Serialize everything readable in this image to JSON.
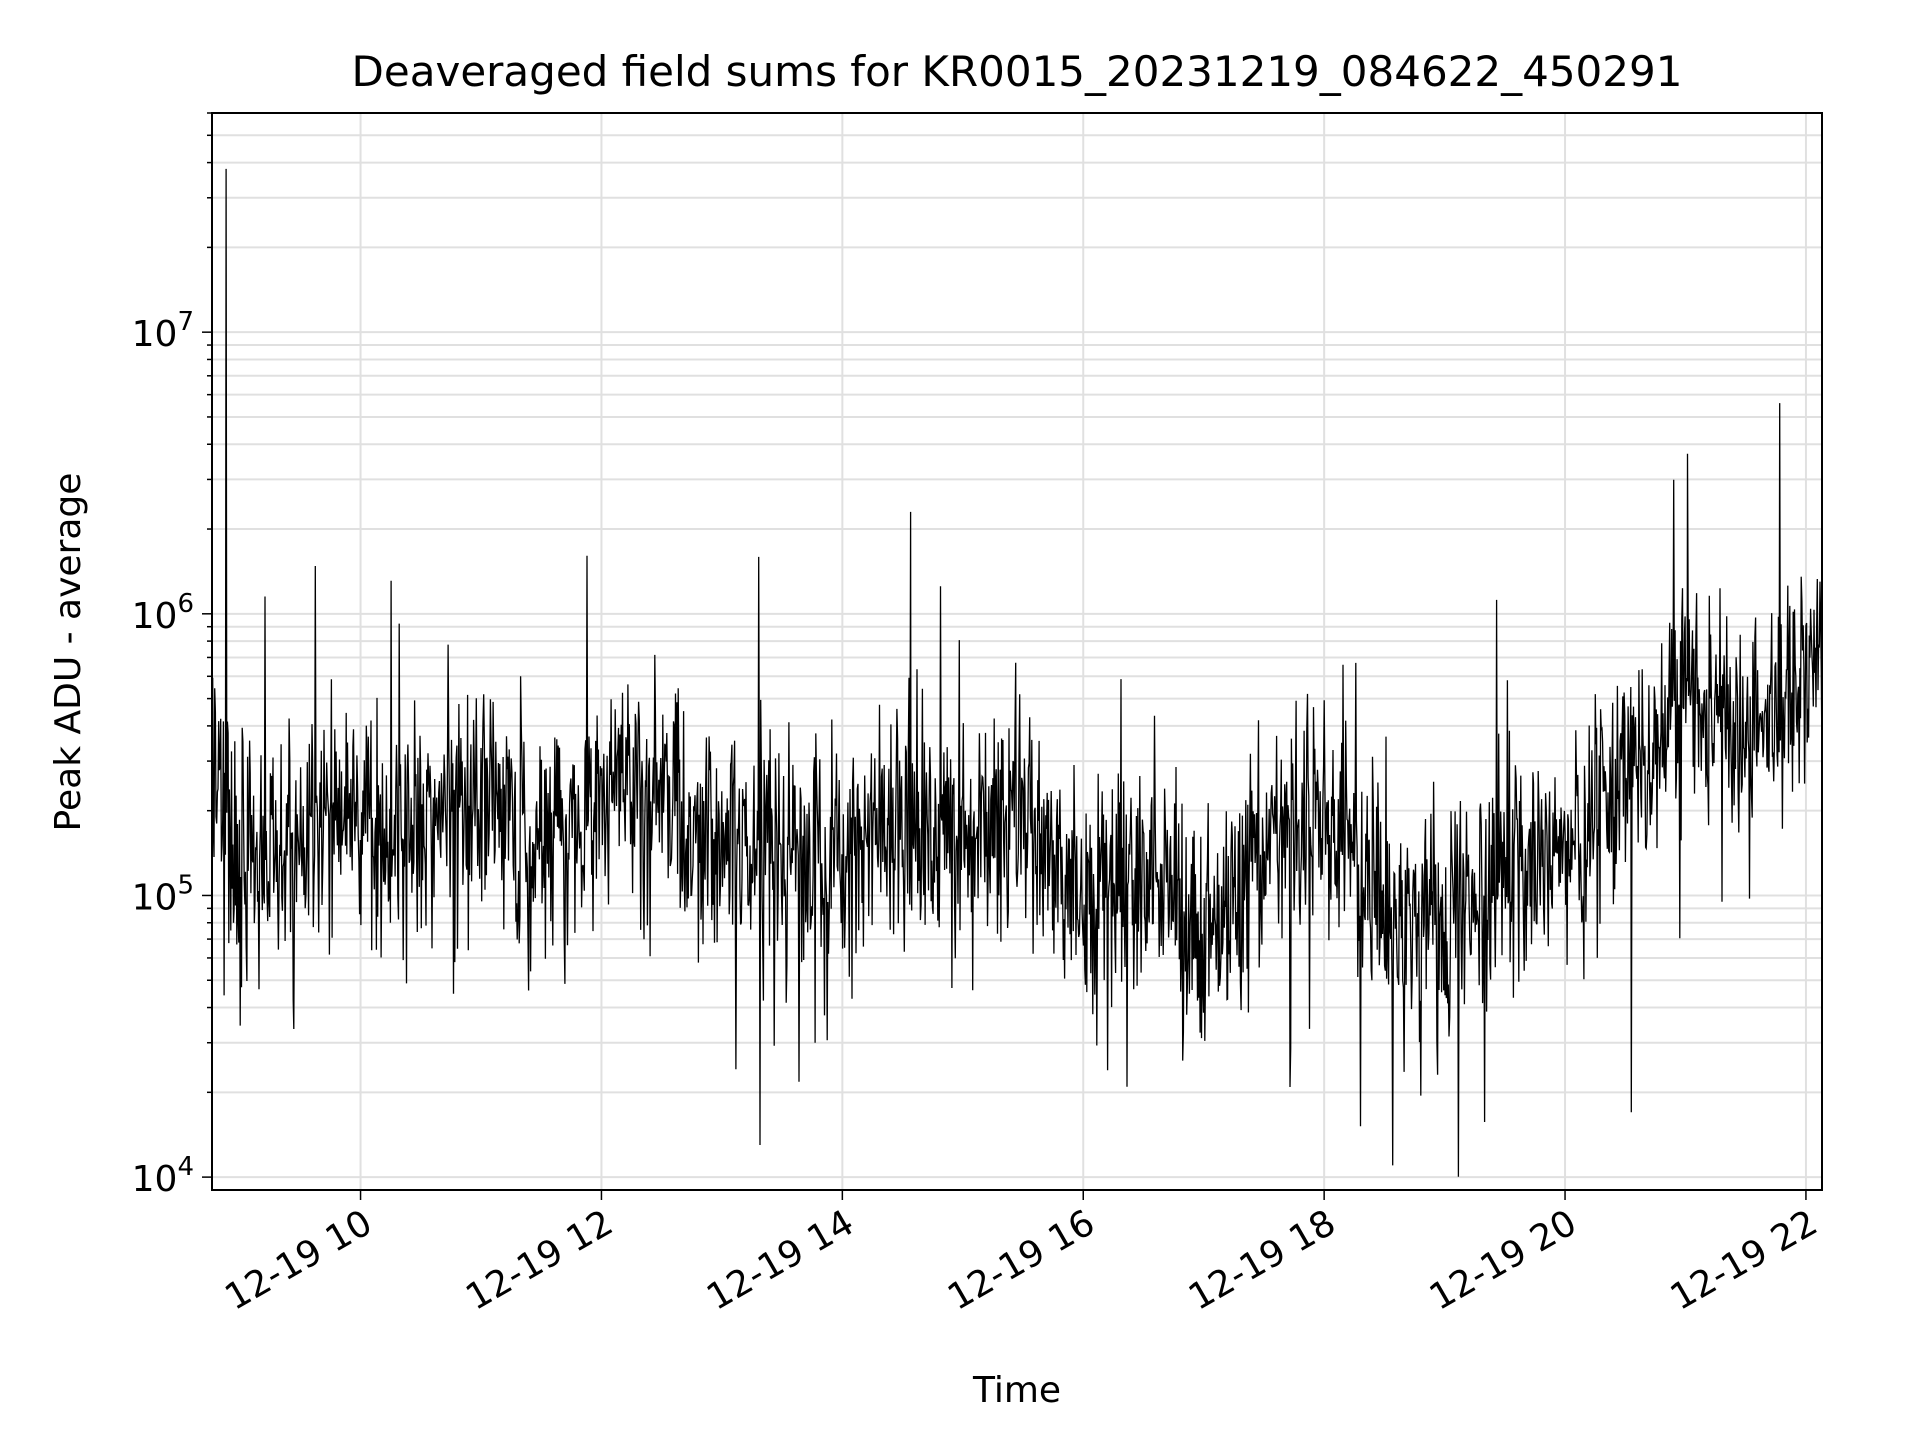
{
  "chart_data": {
    "type": "line",
    "title": "Deaveraged field sums for KR0015_20231219_084622_450291",
    "xlabel": "Time",
    "ylabel": "Peak ADU - average",
    "y_scale": "log",
    "grid": true,
    "line_color": "#000000",
    "grid_color": "#e0e0e0",
    "xlim": [
      "2023-12-19 08:46",
      "2023-12-19 22:08"
    ],
    "ylim": [
      9000,
      60000000
    ],
    "x_ticks": [
      {
        "value": "2023-12-19 10:00",
        "label": "12-19 10"
      },
      {
        "value": "2023-12-19 12:00",
        "label": "12-19 12"
      },
      {
        "value": "2023-12-19 14:00",
        "label": "12-19 14"
      },
      {
        "value": "2023-12-19 16:00",
        "label": "12-19 16"
      },
      {
        "value": "2023-12-19 18:00",
        "label": "12-19 18"
      },
      {
        "value": "2023-12-19 20:00",
        "label": "12-19 20"
      },
      {
        "value": "2023-12-19 22:00",
        "label": "12-19 22"
      }
    ],
    "y_ticks": [
      {
        "value": 10000,
        "label": "10",
        "exp": "4"
      },
      {
        "value": 100000,
        "label": "10",
        "exp": "5"
      },
      {
        "value": 1000000,
        "label": "10",
        "exp": "6"
      },
      {
        "value": 10000000,
        "label": "10",
        "exp": "7"
      }
    ],
    "series": [
      {
        "x_range": [
          "2023-12-19 08:46",
          "2023-12-19 22:08"
        ],
        "envelope": [
          {
            "x": "2023-12-19 08:46",
            "median": 320000
          },
          {
            "x": "2023-12-19 09:00",
            "median": 150000
          },
          {
            "x": "2023-12-19 09:30",
            "median": 150000
          },
          {
            "x": "2023-12-19 10:00",
            "median": 200000
          },
          {
            "x": "2023-12-19 10:30",
            "median": 170000
          },
          {
            "x": "2023-12-19 11:00",
            "median": 210000
          },
          {
            "x": "2023-12-19 11:30",
            "median": 130000
          },
          {
            "x": "2023-12-19 12:00",
            "median": 230000
          },
          {
            "x": "2023-12-19 12:30",
            "median": 220000
          },
          {
            "x": "2023-12-19 13:00",
            "median": 140000
          },
          {
            "x": "2023-12-19 13:30",
            "median": 150000
          },
          {
            "x": "2023-12-19 14:00",
            "median": 130000
          },
          {
            "x": "2023-12-19 14:30",
            "median": 190000
          },
          {
            "x": "2023-12-19 15:00",
            "median": 160000
          },
          {
            "x": "2023-12-19 15:30",
            "median": 210000
          },
          {
            "x": "2023-12-19 16:00",
            "median": 90000
          },
          {
            "x": "2023-12-19 16:30",
            "median": 120000
          },
          {
            "x": "2023-12-19 17:00",
            "median": 65000
          },
          {
            "x": "2023-12-19 17:30",
            "median": 140000
          },
          {
            "x": "2023-12-19 18:00",
            "median": 200000
          },
          {
            "x": "2023-12-19 18:30",
            "median": 100000
          },
          {
            "x": "2023-12-19 19:00",
            "median": 80000
          },
          {
            "x": "2023-12-19 19:30",
            "median": 110000
          },
          {
            "x": "2023-12-19 20:00",
            "median": 150000
          },
          {
            "x": "2023-12-19 20:30",
            "median": 280000
          },
          {
            "x": "2023-12-19 21:00",
            "median": 500000
          },
          {
            "x": "2023-12-19 21:30",
            "median": 400000
          },
          {
            "x": "2023-12-19 22:08",
            "median": 600000
          }
        ],
        "notable_points": [
          {
            "x": "2023-12-19 08:53",
            "y": 38000000
          },
          {
            "x": "2023-12-19 13:19",
            "y": 13000
          },
          {
            "x": "2023-12-19 14:34",
            "y": 2300000
          },
          {
            "x": "2023-12-19 21:01",
            "y": 3700000
          },
          {
            "x": "2023-12-19 20:33",
            "y": 17000
          }
        ]
      }
    ]
  }
}
